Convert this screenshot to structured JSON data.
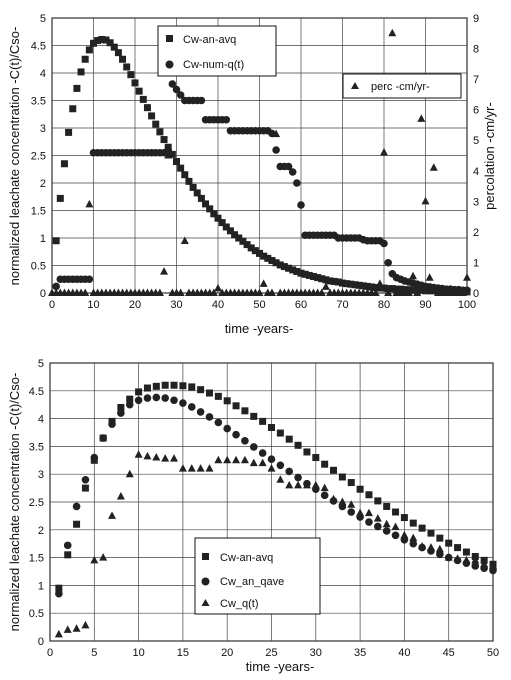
{
  "chart_data": [
    {
      "type": "scatter",
      "xlabel": "time -years-",
      "ylabel": "normalized leachate concentration -C(t)/Cso-",
      "y2label": "percolation -cm/yr-",
      "xlim": [
        0,
        100
      ],
      "ylim": [
        0,
        5
      ],
      "y2lim": [
        0,
        9
      ],
      "xticks": [
        0,
        10,
        20,
        30,
        40,
        50,
        60,
        70,
        80,
        90,
        100
      ],
      "yticks": [
        0,
        0.5,
        1,
        1.5,
        2,
        2.5,
        3,
        3.5,
        4,
        4.5,
        5
      ],
      "y2ticks": [
        0,
        1,
        2,
        3,
        4,
        5,
        6,
        7,
        8,
        9
      ],
      "grid": true,
      "legend_main_position": "top-center",
      "legend_secondary_position": "top-right",
      "series": [
        {
          "name": "Cw-an-avq",
          "marker": "square",
          "axis": "left",
          "x": [
            1,
            2,
            3,
            4,
            5,
            6,
            7,
            8,
            9,
            10,
            11,
            12,
            13,
            14,
            15,
            16,
            17,
            18,
            19,
            20,
            21,
            22,
            23,
            24,
            25,
            26,
            27,
            28,
            29,
            30,
            31,
            32,
            33,
            34,
            35,
            36,
            37,
            38,
            39,
            40,
            41,
            42,
            43,
            44,
            45,
            46,
            47,
            48,
            49,
            50,
            51,
            52,
            53,
            54,
            55,
            56,
            57,
            58,
            59,
            60,
            61,
            62,
            63,
            64,
            65,
            66,
            67,
            68,
            69,
            70,
            71,
            72,
            73,
            74,
            75,
            76,
            77,
            78,
            79,
            80,
            81,
            82,
            83,
            84,
            85,
            86,
            87,
            88,
            89,
            90,
            91,
            92,
            93,
            94,
            95,
            96,
            97,
            98,
            99,
            100
          ],
          "y": [
            0.95,
            1.72,
            2.35,
            2.92,
            3.35,
            3.72,
            4.02,
            4.25,
            4.42,
            4.54,
            4.59,
            4.61,
            4.6,
            4.55,
            4.47,
            4.37,
            4.25,
            4.11,
            3.97,
            3.82,
            3.67,
            3.52,
            3.37,
            3.22,
            3.07,
            2.93,
            2.79,
            2.65,
            2.52,
            2.39,
            2.27,
            2.15,
            2.03,
            1.92,
            1.82,
            1.72,
            1.62,
            1.53,
            1.44,
            1.36,
            1.28,
            1.2,
            1.13,
            1.06,
            1.0,
            0.94,
            0.88,
            0.82,
            0.77,
            0.72,
            0.67,
            0.63,
            0.59,
            0.55,
            0.51,
            0.48,
            0.45,
            0.42,
            0.39,
            0.36,
            0.34,
            0.32,
            0.3,
            0.28,
            0.26,
            0.24,
            0.22,
            0.21,
            0.2,
            0.18,
            0.17,
            0.16,
            0.15,
            0.14,
            0.13,
            0.12,
            0.11,
            0.1,
            0.09,
            0.09,
            0.08,
            0.08,
            0.07,
            0.07,
            0.06,
            0.06,
            0.05,
            0.05,
            0.05,
            0.04,
            0.04,
            0.04,
            0.04,
            0.03,
            0.03,
            0.03,
            0.03,
            0.03,
            0.02,
            0.02
          ]
        },
        {
          "name": "Cw-num-q(t)",
          "marker": "circle",
          "axis": "left",
          "x": [
            1,
            2,
            3,
            4,
            5,
            6,
            7,
            8,
            9,
            10,
            11,
            12,
            13,
            14,
            15,
            16,
            17,
            18,
            19,
            20,
            21,
            22,
            23,
            24,
            25,
            26,
            27,
            28,
            29,
            30,
            31,
            32,
            33,
            34,
            35,
            36,
            37,
            38,
            39,
            40,
            41,
            42,
            43,
            44,
            45,
            46,
            47,
            48,
            49,
            50,
            51,
            52,
            53,
            54,
            55,
            56,
            57,
            58,
            59,
            60,
            61,
            62,
            63,
            64,
            65,
            66,
            67,
            68,
            69,
            70,
            71,
            72,
            73,
            74,
            75,
            76,
            77,
            78,
            79,
            80,
            81,
            82,
            83,
            84,
            85,
            86,
            87,
            88,
            89,
            90,
            91,
            92,
            93,
            94,
            95,
            96,
            97,
            98,
            99,
            100
          ],
          "y": [
            0.12,
            0.25,
            0.25,
            0.25,
            0.25,
            0.25,
            0.25,
            0.25,
            0.25,
            2.55,
            2.55,
            2.55,
            2.55,
            2.55,
            2.55,
            2.55,
            2.55,
            2.55,
            2.55,
            2.55,
            2.55,
            2.55,
            2.55,
            2.55,
            2.55,
            2.55,
            2.55,
            2.6,
            3.8,
            3.7,
            3.6,
            3.5,
            3.5,
            3.5,
            3.5,
            3.5,
            3.15,
            3.15,
            3.15,
            3.15,
            3.15,
            3.15,
            2.95,
            2.95,
            2.95,
            2.95,
            2.95,
            2.95,
            2.95,
            2.95,
            2.95,
            2.95,
            2.9,
            2.6,
            2.3,
            2.3,
            2.3,
            2.2,
            2.0,
            1.6,
            1.05,
            1.05,
            1.05,
            1.05,
            1.05,
            1.05,
            1.05,
            1.05,
            1.0,
            1.0,
            1.0,
            1.0,
            1.0,
            1.0,
            0.97,
            0.95,
            0.95,
            0.95,
            0.95,
            0.9,
            0.55,
            0.35,
            0.28,
            0.25,
            0.22,
            0.2,
            0.18,
            0.16,
            0.14,
            0.12,
            0.11,
            0.1,
            0.09,
            0.08,
            0.07,
            0.07,
            0.06,
            0.06,
            0.05,
            0.05
          ]
        },
        {
          "name": "perc -cm/yr-",
          "marker": "triangle",
          "axis": "right",
          "x": [
            0,
            1,
            2,
            3,
            4,
            5,
            6,
            7,
            8,
            9,
            10,
            11,
            12,
            13,
            14,
            15,
            16,
            17,
            18,
            19,
            20,
            21,
            22,
            23,
            24,
            25,
            26,
            27,
            28,
            29,
            30,
            31,
            32,
            33,
            34,
            35,
            36,
            37,
            38,
            39,
            40,
            41,
            42,
            43,
            44,
            45,
            46,
            47,
            48,
            49,
            50,
            51,
            52,
            53,
            54,
            55,
            56,
            57,
            58,
            59,
            60,
            61,
            62,
            63,
            64,
            65,
            66,
            67,
            68,
            69,
            70,
            71,
            72,
            73,
            74,
            75,
            76,
            77,
            78,
            79,
            80,
            81,
            82,
            83,
            84,
            85,
            86,
            87,
            88,
            89,
            90,
            91,
            92,
            93,
            94,
            95,
            96,
            97,
            98,
            99,
            100
          ],
          "y": [
            0,
            0,
            0,
            0,
            0,
            0,
            0,
            0,
            0,
            2.9,
            0,
            0,
            0,
            0,
            0,
            0,
            0,
            0,
            0,
            0,
            0,
            0,
            0,
            0,
            0,
            0,
            0,
            0.7,
            4.5,
            0,
            0,
            0,
            1.7,
            0,
            0,
            0,
            0,
            0,
            0,
            0,
            0.15,
            0,
            0,
            0,
            0,
            0,
            0,
            0,
            0,
            0,
            0,
            0.3,
            0,
            0,
            5.2,
            0,
            0,
            0,
            0,
            0,
            0,
            0,
            0,
            0,
            0,
            0,
            0.2,
            0,
            0,
            0,
            0,
            0,
            0,
            0,
            0,
            0,
            0,
            0,
            0,
            0.3,
            4.6,
            0,
            8.5,
            0,
            0,
            0,
            0,
            0.55,
            0,
            5.7,
            3.0,
            0.5,
            4.1,
            0,
            0,
            0,
            0,
            0,
            0,
            0,
            0.5
          ]
        }
      ]
    },
    {
      "type": "scatter",
      "xlabel": "time -years-",
      "ylabel": "normalized leachate concentration -C(t)/Cso-",
      "xlim": [
        0,
        50
      ],
      "ylim": [
        0,
        5
      ],
      "xticks": [
        0,
        5,
        10,
        15,
        20,
        25,
        30,
        35,
        40,
        45,
        50
      ],
      "yticks": [
        0,
        0.5,
        1,
        1.5,
        2,
        2.5,
        3,
        3.5,
        4,
        4.5,
        5
      ],
      "grid": true,
      "legend_position": "bottom-left",
      "series": [
        {
          "name": "Cw-an-avq",
          "marker": "square",
          "x": [
            1,
            2,
            3,
            4,
            5,
            6,
            7,
            8,
            9,
            10,
            11,
            12,
            13,
            14,
            15,
            16,
            17,
            18,
            19,
            20,
            21,
            22,
            23,
            24,
            25,
            26,
            27,
            28,
            29,
            30,
            31,
            32,
            33,
            34,
            35,
            36,
            37,
            38,
            39,
            40,
            41,
            42,
            43,
            44,
            45,
            46,
            47,
            48,
            49,
            50
          ],
          "y": [
            0.95,
            1.55,
            2.1,
            2.75,
            3.25,
            3.65,
            3.95,
            4.2,
            4.35,
            4.48,
            4.55,
            4.58,
            4.6,
            4.6,
            4.59,
            4.57,
            4.52,
            4.46,
            4.4,
            4.32,
            4.23,
            4.14,
            4.04,
            3.95,
            3.84,
            3.74,
            3.63,
            3.52,
            3.4,
            3.3,
            3.18,
            3.07,
            2.95,
            2.85,
            2.73,
            2.63,
            2.52,
            2.42,
            2.32,
            2.22,
            2.12,
            2.03,
            1.94,
            1.85,
            1.76,
            1.68,
            1.6,
            1.52,
            1.45,
            1.38
          ]
        },
        {
          "name": "Cw_an_qave",
          "marker": "circle",
          "x": [
            1,
            2,
            3,
            4,
            5,
            6,
            7,
            8,
            9,
            10,
            11,
            12,
            13,
            14,
            15,
            16,
            17,
            18,
            19,
            20,
            21,
            22,
            23,
            24,
            25,
            26,
            27,
            28,
            29,
            30,
            31,
            32,
            33,
            34,
            35,
            36,
            37,
            38,
            39,
            40,
            41,
            42,
            43,
            44,
            45,
            46,
            47,
            48,
            49,
            50
          ],
          "y": [
            0.85,
            1.72,
            2.42,
            2.9,
            3.3,
            3.65,
            3.9,
            4.1,
            4.25,
            4.33,
            4.37,
            4.38,
            4.37,
            4.33,
            4.28,
            4.21,
            4.12,
            4.03,
            3.93,
            3.82,
            3.71,
            3.6,
            3.49,
            3.38,
            3.27,
            3.16,
            3.05,
            2.94,
            2.83,
            2.73,
            2.62,
            2.52,
            2.42,
            2.32,
            2.23,
            2.14,
            2.06,
            1.98,
            1.9,
            1.82,
            1.75,
            1.68,
            1.62,
            1.56,
            1.5,
            1.45,
            1.4,
            1.35,
            1.31,
            1.27
          ]
        },
        {
          "name": "Cw_q(t)",
          "marker": "triangle",
          "x": [
            1,
            2,
            3,
            4,
            5,
            6,
            7,
            8,
            9,
            10,
            11,
            12,
            13,
            14,
            15,
            16,
            17,
            18,
            19,
            20,
            21,
            22,
            23,
            24,
            25,
            26,
            27,
            28,
            29,
            30,
            31,
            32,
            33,
            34,
            35,
            36,
            37,
            38,
            39,
            40,
            41,
            42,
            43,
            44,
            45,
            46,
            47,
            48,
            49,
            50
          ],
          "y": [
            0.12,
            0.2,
            0.22,
            0.28,
            1.45,
            1.5,
            2.25,
            2.6,
            3.0,
            3.35,
            3.32,
            3.3,
            3.28,
            3.28,
            3.1,
            3.1,
            3.1,
            3.1,
            3.25,
            3.25,
            3.25,
            3.25,
            3.2,
            3.2,
            3.1,
            2.9,
            2.8,
            2.8,
            2.8,
            2.8,
            2.75,
            2.55,
            2.5,
            2.45,
            2.3,
            2.3,
            2.2,
            2.1,
            2.05,
            1.9,
            1.85,
            1.7,
            1.68,
            1.65,
            1.5,
            1.48,
            1.45,
            1.45,
            1.38,
            1.35
          ]
        }
      ]
    }
  ]
}
